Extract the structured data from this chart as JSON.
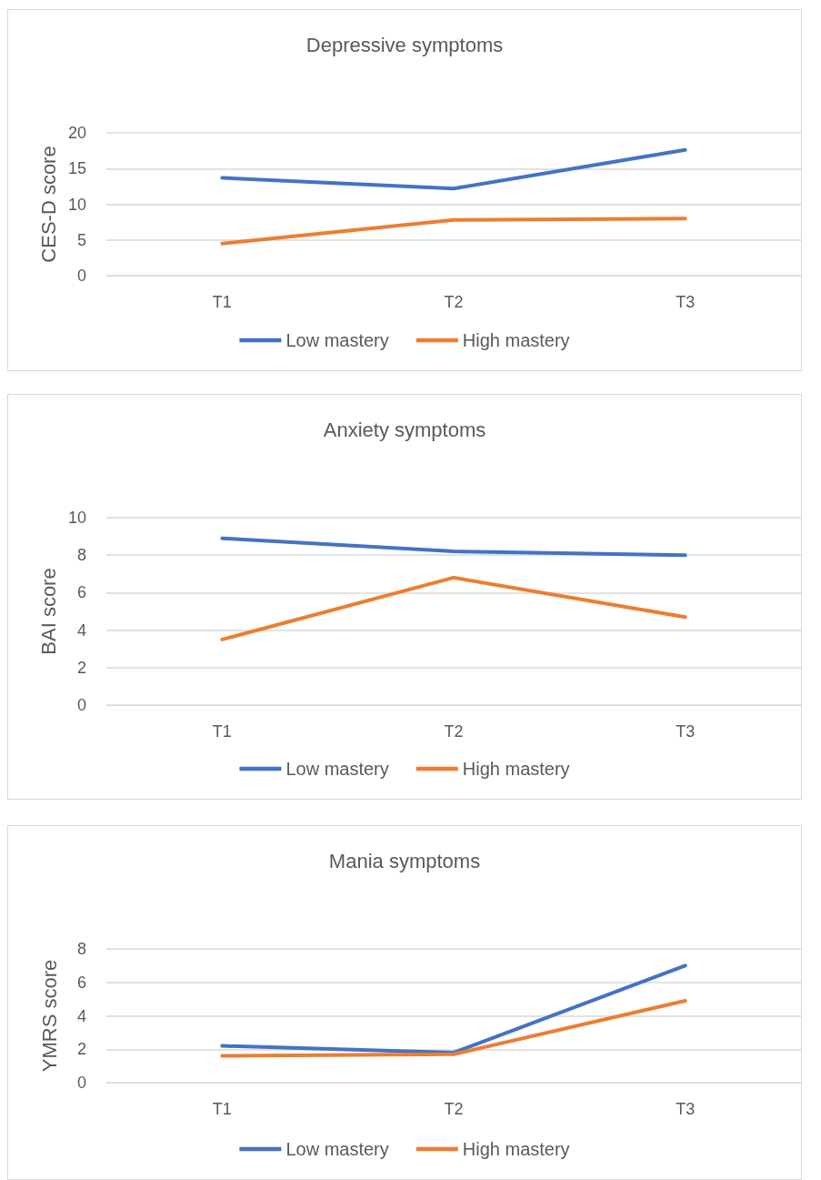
{
  "chart_data": [
    {
      "type": "line",
      "title": "Depressive symptoms",
      "ylabel": "CES-D score",
      "categories": [
        "T1",
        "T2",
        "T3"
      ],
      "series": [
        {
          "name": "Low mastery",
          "color": "#4472c4",
          "values": [
            13.7,
            12.2,
            17.6
          ]
        },
        {
          "name": "High mastery",
          "color": "#ed7d31",
          "values": [
            4.5,
            7.8,
            8.0
          ]
        }
      ],
      "ylim": [
        0,
        20
      ],
      "yticks": [
        0,
        5,
        10,
        15,
        20
      ],
      "grid": "y",
      "legend": "bottom",
      "marker": "none",
      "line_style": "solid"
    },
    {
      "type": "line",
      "title": "Anxiety symptoms",
      "ylabel": "BAI score",
      "categories": [
        "T1",
        "T2",
        "T3"
      ],
      "series": [
        {
          "name": "Low mastery",
          "color": "#4472c4",
          "values": [
            8.9,
            8.2,
            8.0
          ]
        },
        {
          "name": "High mastery",
          "color": "#ed7d31",
          "values": [
            3.5,
            6.8,
            4.7
          ]
        }
      ],
      "ylim": [
        0,
        10
      ],
      "yticks": [
        0,
        2,
        4,
        6,
        8,
        10
      ],
      "grid": "y",
      "legend": "bottom",
      "marker": "none",
      "line_style": "solid"
    },
    {
      "type": "line",
      "title": "Mania symptoms",
      "ylabel": "YMRS score",
      "categories": [
        "T1",
        "T2",
        "T3"
      ],
      "series": [
        {
          "name": "Low mastery",
          "color": "#4472c4",
          "values": [
            2.2,
            1.8,
            7.0
          ]
        },
        {
          "name": "High mastery",
          "color": "#ed7d31",
          "values": [
            1.6,
            1.7,
            4.9
          ]
        }
      ],
      "ylim": [
        0,
        8
      ],
      "yticks": [
        0,
        2,
        4,
        6,
        8
      ],
      "grid": "y",
      "legend": "bottom",
      "marker": "none",
      "line_style": "solid"
    }
  ]
}
